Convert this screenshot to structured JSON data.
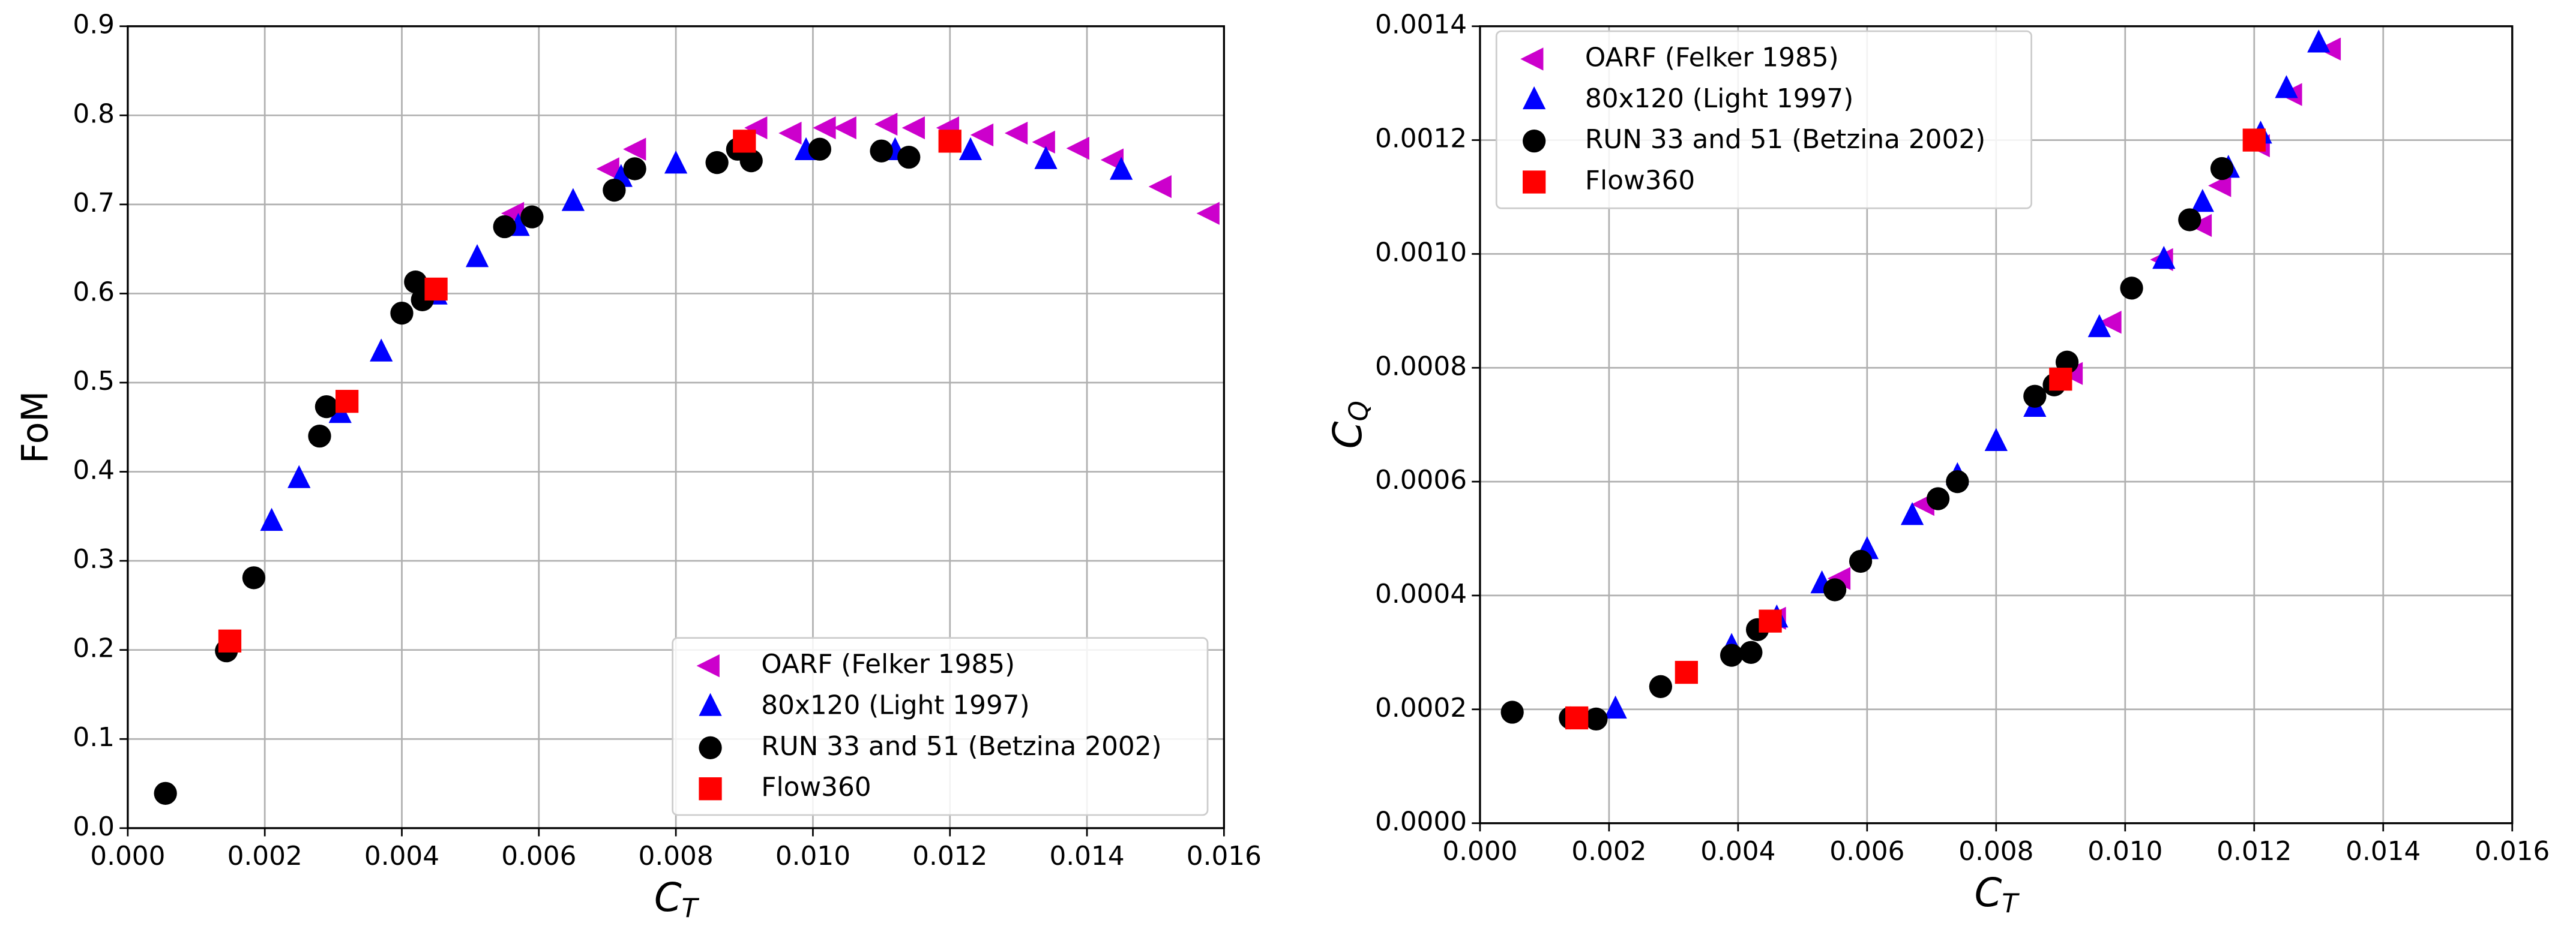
{
  "chart_data": [
    {
      "type": "scatter",
      "xlabel": {
        "text": "C",
        "subscript": "T"
      },
      "ylabel": "FoM",
      "xlim": [
        0,
        0.016
      ],
      "ylim": [
        0,
        0.9
      ],
      "xticks": [
        {
          "value": 0,
          "label": "0.000"
        },
        {
          "value": 0.002,
          "label": "0.002"
        },
        {
          "value": 0.004,
          "label": "0.004"
        },
        {
          "value": 0.006,
          "label": "0.006"
        },
        {
          "value": 0.008,
          "label": "0.008"
        },
        {
          "value": 0.01,
          "label": "0.010"
        },
        {
          "value": 0.012,
          "label": "0.012"
        },
        {
          "value": 0.014,
          "label": "0.014"
        },
        {
          "value": 0.016,
          "label": "0.016"
        }
      ],
      "yticks": [
        {
          "value": 0,
          "label": "0.0"
        },
        0.1,
        0.2,
        0.3,
        0.4,
        0.5,
        0.6,
        0.7,
        0.8,
        0.9
      ],
      "grid": true,
      "legend": "lower right",
      "series": [
        {
          "name": "OARF (Felker 1985)",
          "color": "#cc00cc",
          "marker": "triangle-left",
          "x": [
            0.00565,
            0.00704,
            0.00743,
            0.0092,
            0.0097,
            0.0102,
            0.0105,
            0.0111,
            0.0115,
            0.012,
            0.0125,
            0.013,
            0.0134,
            0.0139,
            0.0144,
            0.0151,
            0.0158
          ],
          "values": [
            0.69,
            0.74,
            0.762,
            0.786,
            0.78,
            0.786,
            0.786,
            0.79,
            0.786,
            0.786,
            0.778,
            0.78,
            0.77,
            0.763,
            0.75,
            0.72,
            0.69
          ]
        },
        {
          "name": "80x120 (Light 1997)",
          "color": "#0000ff",
          "marker": "triangle-up",
          "x": [
            0.0021,
            0.0025,
            0.0031,
            0.0037,
            0.0045,
            0.0051,
            0.0057,
            0.0065,
            0.0072,
            0.008,
            0.0099,
            0.0112,
            0.0123,
            0.0134,
            0.0145
          ],
          "values": [
            0.344,
            0.392,
            0.465,
            0.534,
            0.598,
            0.64,
            0.675,
            0.703,
            0.73,
            0.745,
            0.76,
            0.76,
            0.76,
            0.75,
            0.738
          ]
        },
        {
          "name": "RUN 33 and 51 (Betzina 2002)",
          "color": "#000000",
          "marker": "circle",
          "x": [
            0.00055,
            0.00144,
            0.00184,
            0.0028,
            0.0029,
            0.004,
            0.0042,
            0.0043,
            0.0055,
            0.0059,
            0.0071,
            0.0074,
            0.0086,
            0.0089,
            0.0091,
            0.0101,
            0.011,
            0.0114
          ],
          "values": [
            0.039,
            0.199,
            0.281,
            0.44,
            0.473,
            0.578,
            0.613,
            0.593,
            0.675,
            0.686,
            0.716,
            0.74,
            0.747,
            0.762,
            0.749,
            0.762,
            0.76,
            0.753
          ]
        },
        {
          "name": "Flow360",
          "color": "#ff0000",
          "marker": "square",
          "x": [
            0.00149,
            0.0032,
            0.0045,
            0.009,
            0.012
          ],
          "values": [
            0.21,
            0.479,
            0.605,
            0.771,
            0.771
          ]
        }
      ]
    },
    {
      "type": "scatter",
      "xlabel": {
        "text": "C",
        "subscript": "T"
      },
      "ylabel": {
        "text": "C",
        "subscript": "Q"
      },
      "xlim": [
        0,
        0.016
      ],
      "ylim": [
        0,
        0.0014
      ],
      "xticks": [
        {
          "value": 0,
          "label": "0.000"
        },
        {
          "value": 0.002,
          "label": "0.002"
        },
        {
          "value": 0.004,
          "label": "0.004"
        },
        {
          "value": 0.006,
          "label": "0.006"
        },
        {
          "value": 0.008,
          "label": "0.008"
        },
        {
          "value": 0.01,
          "label": "0.010"
        },
        {
          "value": 0.012,
          "label": "0.012"
        },
        {
          "value": 0.014,
          "label": "0.014"
        },
        {
          "value": 0.016,
          "label": "0.016"
        }
      ],
      "yticks": [
        {
          "value": 0,
          "label": "0.0000"
        },
        {
          "value": 0.0002,
          "label": "0.0002"
        },
        {
          "value": 0.0004,
          "label": "0.0004"
        },
        {
          "value": 0.0006,
          "label": "0.0006"
        },
        {
          "value": 0.0008,
          "label": "0.0008"
        },
        {
          "value": 0.001,
          "label": "0.0010"
        },
        {
          "value": 0.0012,
          "label": "0.0012"
        },
        {
          "value": 0.0014,
          "label": "0.0014"
        }
      ],
      "grid": true,
      "legend": "upper left",
      "series": [
        {
          "name": "OARF (Felker 1985)",
          "color": "#cc00cc",
          "marker": "triangle-left",
          "x": [
            0.0046,
            0.0056,
            0.0069,
            0.0092,
            0.0098,
            0.0106,
            0.0112,
            0.0115,
            0.0121,
            0.0126,
            0.0132
          ],
          "values": [
            0.00036,
            0.00043,
            0.00056,
            0.00079,
            0.00088,
            0.00099,
            0.00105,
            0.00112,
            0.00119,
            0.00128,
            0.00136
          ]
        },
        {
          "name": "80x120 (Light 1997)",
          "color": "#0000ff",
          "marker": "triangle-up",
          "x": [
            0.0021,
            0.0039,
            0.0046,
            0.0053,
            0.006,
            0.0067,
            0.0074,
            0.008,
            0.0086,
            0.0096,
            0.0106,
            0.0112,
            0.0116,
            0.0121,
            0.0125,
            0.013
          ],
          "values": [
            0.0002,
            0.00031,
            0.00036,
            0.00042,
            0.00048,
            0.00054,
            0.00061,
            0.00067,
            0.00073,
            0.00087,
            0.00099,
            0.00109,
            0.00115,
            0.00121,
            0.00129,
            0.00137
          ]
        },
        {
          "name": "RUN 33 and 51 (Betzina 2002)",
          "color": "#000000",
          "marker": "circle",
          "x": [
            0.0005,
            0.0014,
            0.0018,
            0.0028,
            0.0039,
            0.0042,
            0.0043,
            0.0055,
            0.0059,
            0.0071,
            0.0074,
            0.0086,
            0.0089,
            0.0091,
            0.0101,
            0.011,
            0.0115
          ],
          "values": [
            0.000195,
            0.000185,
            0.000183,
            0.00024,
            0.000295,
            0.0003,
            0.00034,
            0.00041,
            0.00046,
            0.00057,
            0.0006,
            0.00075,
            0.00077,
            0.00081,
            0.00094,
            0.00106,
            0.00115
          ]
        },
        {
          "name": "Flow360",
          "color": "#ff0000",
          "marker": "square",
          "x": [
            0.0015,
            0.0032,
            0.0045,
            0.009,
            0.012
          ],
          "values": [
            0.000185,
            0.000265,
            0.000355,
            0.00078,
            0.0012
          ]
        }
      ]
    }
  ]
}
